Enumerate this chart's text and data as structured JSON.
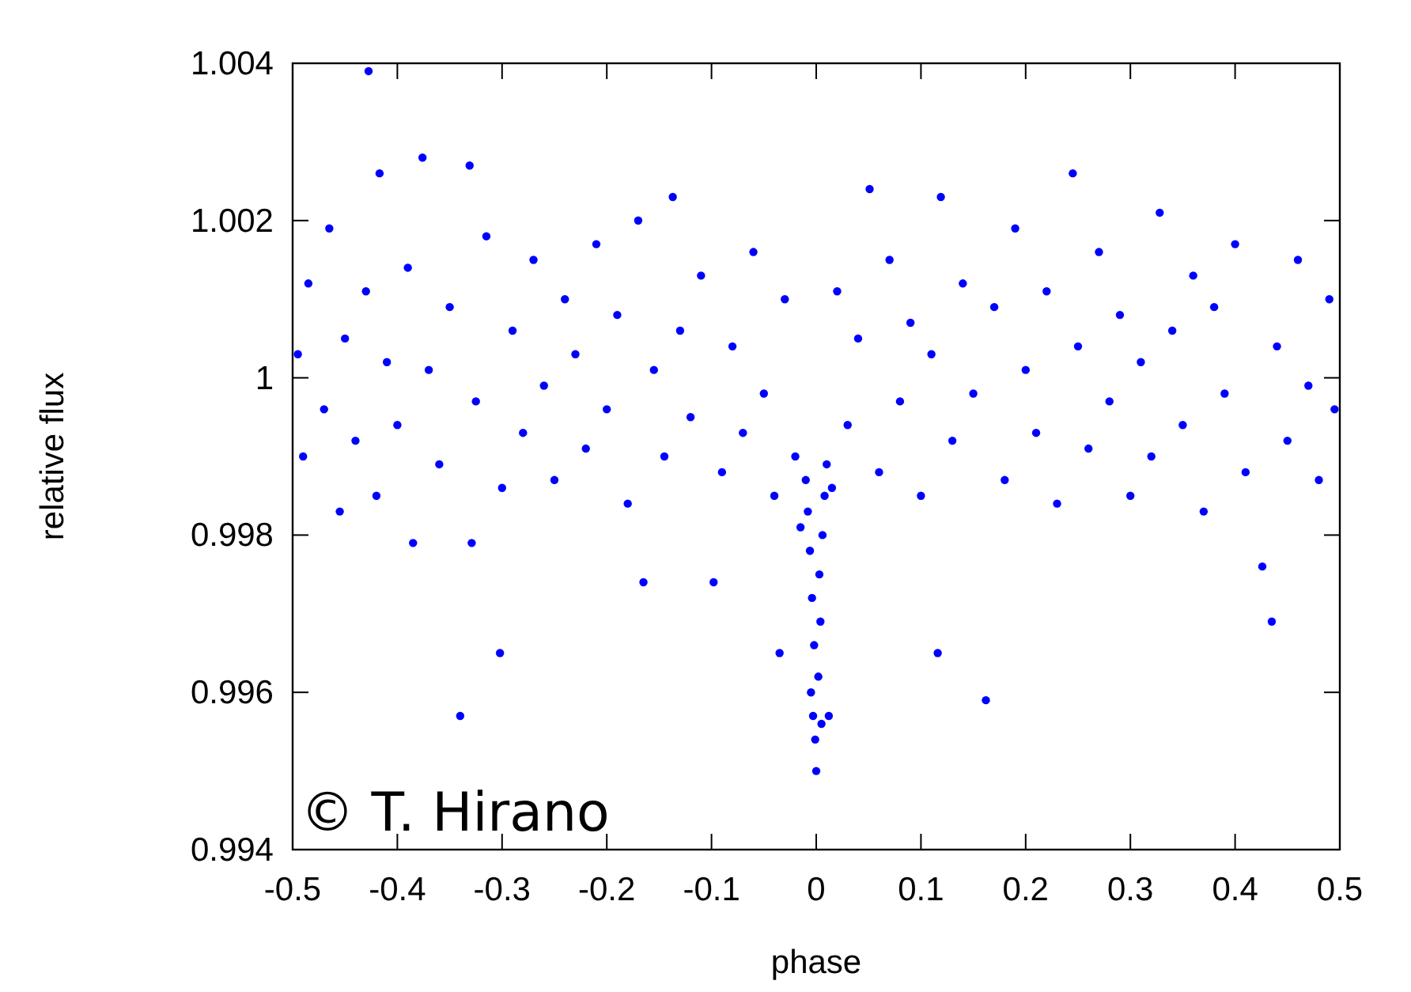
{
  "chart_data": {
    "type": "scatter",
    "xlabel": "phase",
    "ylabel": "relative flux",
    "xlim": [
      -0.5,
      0.5
    ],
    "ylim": [
      0.994,
      1.004
    ],
    "xticks": [
      -0.5,
      -0.4,
      -0.3,
      -0.2,
      -0.1,
      0,
      0.1,
      0.2,
      0.3,
      0.4,
      0.5
    ],
    "yticks": [
      0.994,
      0.996,
      0.998,
      1,
      1.002,
      1.004
    ],
    "grid": false,
    "marker": "circle",
    "annotations": [
      "© T. Hirano"
    ],
    "series": [
      {
        "color": "#0000ff",
        "x": [
          -0.495,
          -0.49,
          -0.485,
          -0.47,
          -0.465,
          -0.455,
          -0.45,
          -0.44,
          -0.43,
          -0.4275,
          -0.42,
          -0.417,
          -0.41,
          -0.4,
          -0.39,
          -0.385,
          -0.376,
          -0.37,
          -0.36,
          -0.35,
          -0.34,
          -0.331,
          -0.329,
          -0.325,
          -0.315,
          -0.302,
          -0.3,
          -0.29,
          -0.28,
          -0.27,
          -0.26,
          -0.25,
          -0.24,
          -0.23,
          -0.22,
          -0.21,
          -0.2,
          -0.19,
          -0.18,
          -0.17,
          -0.165,
          -0.155,
          -0.145,
          -0.137,
          -0.13,
          -0.12,
          -0.11,
          -0.098,
          -0.09,
          -0.08,
          -0.07,
          -0.06,
          -0.05,
          -0.04,
          -0.035,
          -0.03,
          -0.02,
          -0.015,
          -0.01,
          -0.008,
          -0.006,
          -0.005,
          -0.004,
          -0.003,
          -0.002,
          -0.001,
          0,
          0.002,
          0.003,
          0.004,
          0.005,
          0.006,
          0.008,
          0.01,
          0.012,
          0.015,
          0.02,
          0.03,
          0.04,
          0.051,
          0.06,
          0.07,
          0.08,
          0.09,
          0.1,
          0.11,
          0.116,
          0.119,
          0.13,
          0.14,
          0.15,
          0.162,
          0.17,
          0.18,
          0.19,
          0.2,
          0.21,
          0.22,
          0.23,
          0.245,
          0.25,
          0.26,
          0.27,
          0.28,
          0.29,
          0.3,
          0.31,
          0.32,
          0.328,
          0.34,
          0.35,
          0.36,
          0.37,
          0.38,
          0.39,
          0.4,
          0.41,
          0.426,
          0.435,
          0.44,
          0.45,
          0.46,
          0.47,
          0.48,
          0.49,
          0.495
        ],
        "values": [
          1.0003,
          0.999,
          1.0012,
          0.9996,
          1.0019,
          0.9983,
          1.0005,
          0.9992,
          1.0011,
          1.0039,
          0.9985,
          1.0026,
          1.0002,
          0.9994,
          1.0014,
          0.9979,
          1.0028,
          1.0001,
          0.9989,
          1.0009,
          0.9957,
          1.0027,
          0.9979,
          0.9997,
          1.0018,
          0.9965,
          0.9986,
          1.0006,
          0.9993,
          1.0015,
          0.9999,
          0.9987,
          1.001,
          1.0003,
          0.9991,
          1.0017,
          0.9996,
          1.0008,
          0.9984,
          1.002,
          0.9974,
          1.0001,
          0.999,
          1.0023,
          1.0006,
          0.9995,
          1.0013,
          0.9974,
          0.9988,
          1.0004,
          0.9993,
          1.0016,
          0.9998,
          0.9985,
          0.9965,
          1.001,
          0.999,
          0.9981,
          0.9987,
          0.9983,
          0.9978,
          0.996,
          0.9972,
          0.9957,
          0.9966,
          0.9954,
          0.995,
          0.9962,
          0.9975,
          0.9969,
          0.9956,
          0.998,
          0.9985,
          0.9989,
          0.9957,
          0.9986,
          1.0011,
          0.9994,
          1.0005,
          1.0024,
          0.9988,
          1.0015,
          0.9997,
          1.0007,
          0.9985,
          1.0003,
          0.9965,
          1.0023,
          0.9992,
          1.0012,
          0.9998,
          0.9959,
          1.0009,
          0.9987,
          1.0019,
          1.0001,
          0.9993,
          1.0011,
          0.9984,
          1.0026,
          1.0004,
          0.9991,
          1.0016,
          0.9997,
          1.0008,
          0.9985,
          1.0002,
          0.999,
          1.0021,
          1.0006,
          0.9994,
          1.0013,
          0.9983,
          1.0009,
          0.9998,
          1.0017,
          0.9988,
          0.9976,
          0.9969,
          1.0004,
          0.9992,
          1.0015,
          0.9999,
          0.9987,
          1.001,
          0.9996
        ]
      }
    ]
  }
}
